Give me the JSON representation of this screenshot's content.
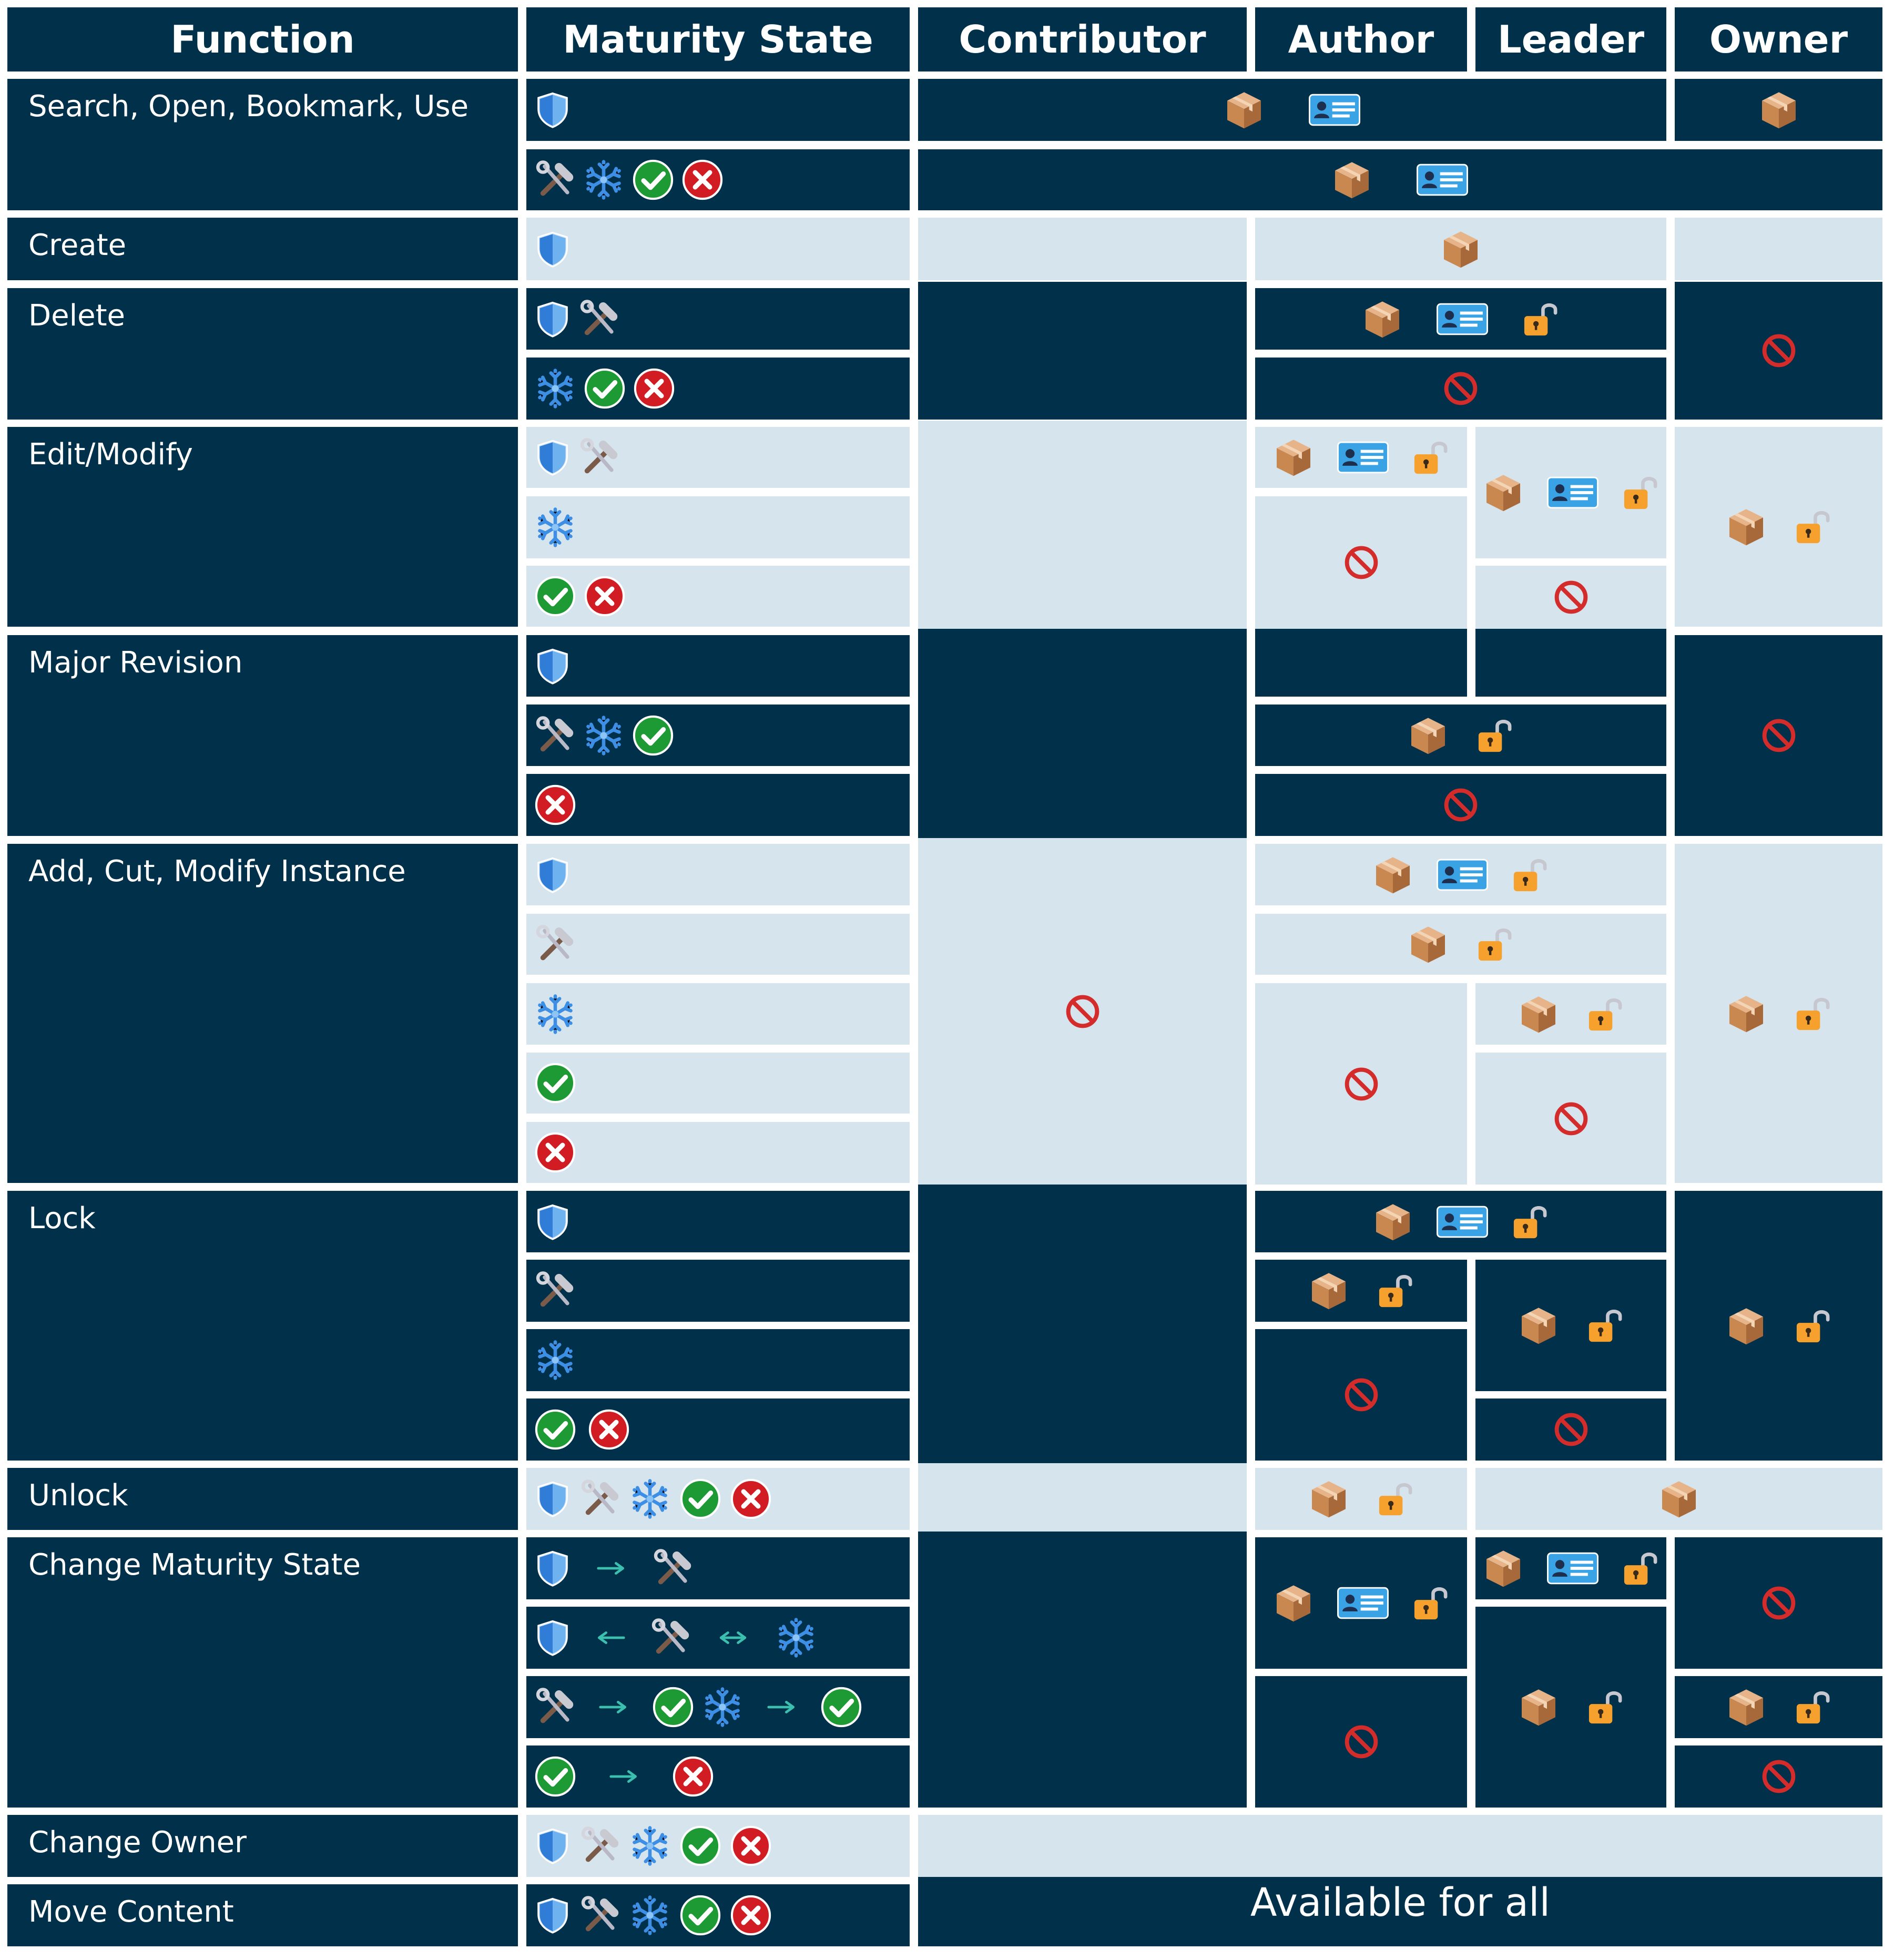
{
  "headers": [
    "Function",
    "Maturity State",
    "Contributor",
    "Author",
    "Leader",
    "Owner"
  ],
  "functions": [
    "Search, Open, Bookmark, Use",
    "Create",
    "Delete",
    "Edit/Modify",
    "Major Revision",
    "Add, Cut, Modify Instance",
    "Lock",
    "Unlock",
    "Change Maturity State",
    "Change Owner",
    "Move Content"
  ],
  "note_available_for_all": "Available for all",
  "legend_icon_names": {
    "shield": "shield-icon",
    "tools": "tools-icon",
    "snow": "snowflake-icon",
    "check": "check-circle-icon",
    "cross": "cross-circle-icon",
    "box": "package-icon",
    "card": "id-card-icon",
    "lock": "open-padlock-icon",
    "no": "prohibited-icon",
    "arrow-right": "arrow-right-icon",
    "arrow-left": "arrow-left-icon",
    "arrow-both": "arrow-both-icon"
  },
  "colors": {
    "dark_fill": "#00304a",
    "light_fill": "#d6e4ed",
    "shield": "#4a9be8",
    "snowflake": "#3d8fe6",
    "check": "#1e9a34",
    "cross": "#d01c22",
    "box": "#c9884f",
    "card": "#3aa3e6",
    "lock": "#f6a12d",
    "prohibited": "#d42b2b",
    "arrow": "#3bbfae"
  }
}
